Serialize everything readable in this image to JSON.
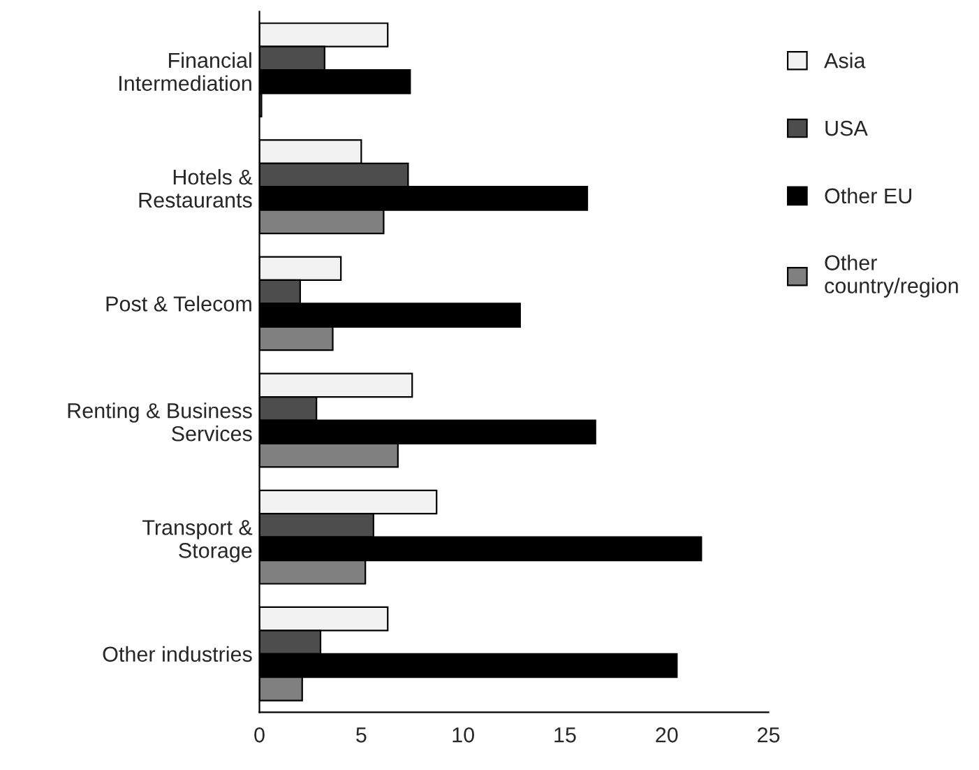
{
  "chart_data": {
    "type": "bar",
    "orientation": "horizontal",
    "categories": [
      "Financial\nIntermediation",
      "Hotels &\nRestaurants",
      "Post & Telecom",
      "Renting & Business\nServices",
      "Transport &\nStorage",
      "Other industries"
    ],
    "series": [
      {
        "name": "Asia",
        "color": "#f2f2f2",
        "values": [
          6.3,
          5.0,
          4.0,
          7.5,
          8.7,
          6.3
        ]
      },
      {
        "name": "USA",
        "color": "#4d4d4d",
        "values": [
          3.2,
          7.3,
          2.0,
          2.8,
          5.6,
          3.0
        ]
      },
      {
        "name": "Other EU",
        "color": "#000000",
        "values": [
          7.4,
          16.1,
          12.8,
          16.5,
          21.7,
          20.5
        ]
      },
      {
        "name": "Other\ncountry/region",
        "color": "#808080",
        "values": [
          0.1,
          6.1,
          3.6,
          6.8,
          5.2,
          2.1
        ]
      }
    ],
    "xlim": [
      0,
      25
    ],
    "xticks": [
      0,
      5,
      10,
      15,
      20,
      25
    ],
    "grid": false,
    "legend": "right"
  }
}
